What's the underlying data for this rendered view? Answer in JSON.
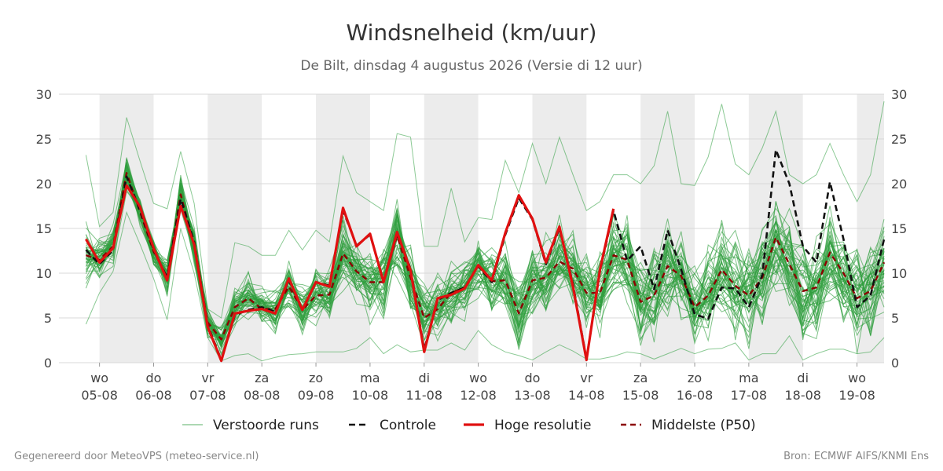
{
  "header": {
    "title": "Windsnelheid (km/uur)",
    "subtitle": "De Bilt, dinsdag  4 augustus 2026 (Versie di 12 uur)"
  },
  "footer": {
    "left": "Gegenereerd door MeteoVPS (meteo-service.nl)",
    "right": "Bron: ECMWF AIFS/KNMI Ens"
  },
  "colors": {
    "ensemble": "#2e9e3e",
    "control": "#111111",
    "highres": "#e01010",
    "median": "#8b0000",
    "shade": "#ececec",
    "grid": "#d9d9d9",
    "tick_text": "#444444"
  },
  "chart_data": {
    "type": "line",
    "title": "Windsnelheid (km/uur)",
    "ylim": [
      0,
      30
    ],
    "yticks": [
      0,
      5,
      10,
      15,
      20,
      25,
      30
    ],
    "xlim": [
      -0.75,
      14.5
    ],
    "grid": "horizontal",
    "legend_position": "bottom",
    "x_ticks": [
      {
        "x": 0,
        "day": "wo",
        "date": "05-08"
      },
      {
        "x": 1,
        "day": "do",
        "date": "06-08"
      },
      {
        "x": 2,
        "day": "vr",
        "date": "07-08"
      },
      {
        "x": 3,
        "day": "za",
        "date": "08-08"
      },
      {
        "x": 4,
        "day": "zo",
        "date": "09-08"
      },
      {
        "x": 5,
        "day": "ma",
        "date": "10-08"
      },
      {
        "x": 6,
        "day": "di",
        "date": "11-08"
      },
      {
        "x": 7,
        "day": "wo",
        "date": "12-08"
      },
      {
        "x": 8,
        "day": "do",
        "date": "13-08"
      },
      {
        "x": 9,
        "day": "vr",
        "date": "14-08"
      },
      {
        "x": 10,
        "day": "za",
        "date": "15-08"
      },
      {
        "x": 11,
        "day": "zo",
        "date": "16-08"
      },
      {
        "x": 12,
        "day": "ma",
        "date": "17-08"
      },
      {
        "x": 13,
        "day": "di",
        "date": "18-08"
      },
      {
        "x": 14,
        "day": "wo",
        "date": "19-08"
      }
    ],
    "shaded_bands": [
      [
        0,
        1
      ],
      [
        2,
        3
      ],
      [
        4,
        5
      ],
      [
        6,
        7
      ],
      [
        8,
        9
      ],
      [
        10,
        11
      ],
      [
        12,
        13
      ],
      [
        14,
        14.5
      ]
    ],
    "legend": [
      {
        "label": "Verstoorde runs",
        "style": "ensemble"
      },
      {
        "label": "Controle",
        "style": "control"
      },
      {
        "label": "Hoge resolutie",
        "style": "highres"
      },
      {
        "label": "Middelste (P50)",
        "style": "median"
      }
    ],
    "series": [
      {
        "name": "Hoge resolutie",
        "points": [
          [
            -0.25,
            13.8
          ],
          [
            0,
            11.2
          ],
          [
            0.25,
            12.8
          ],
          [
            0.5,
            19.8
          ],
          [
            0.75,
            17.4
          ],
          [
            1,
            12.8
          ],
          [
            1.25,
            9.2
          ],
          [
            1.5,
            17.5
          ],
          [
            1.75,
            13.2
          ],
          [
            2,
            4.0
          ],
          [
            2.25,
            0.2
          ],
          [
            2.5,
            5.5
          ],
          [
            2.75,
            5.8
          ],
          [
            3,
            6.0
          ],
          [
            3.25,
            5.5
          ],
          [
            3.5,
            9.4
          ],
          [
            3.75,
            5.9
          ],
          [
            4,
            9.0
          ],
          [
            4.25,
            8.5
          ],
          [
            4.5,
            17.3
          ],
          [
            4.75,
            13.0
          ],
          [
            5,
            14.4
          ],
          [
            5.25,
            9.0
          ],
          [
            5.5,
            14.6
          ],
          [
            5.75,
            10.3
          ],
          [
            6,
            1.2
          ],
          [
            6.25,
            7.2
          ],
          [
            6.5,
            7.6
          ],
          [
            6.75,
            8.3
          ],
          [
            7,
            10.9
          ],
          [
            7.25,
            9.2
          ],
          [
            7.5,
            14.5
          ],
          [
            7.75,
            18.7
          ],
          [
            8,
            16.1
          ],
          [
            8.25,
            11.2
          ],
          [
            8.5,
            15.2
          ],
          [
            8.75,
            8.5
          ],
          [
            9,
            0.3
          ],
          [
            9.25,
            10.4
          ],
          [
            9.5,
            17.2
          ]
        ]
      },
      {
        "name": "Controle",
        "points": [
          [
            -0.25,
            12.6
          ],
          [
            0,
            11.0
          ],
          [
            0.25,
            12.6
          ],
          [
            0.5,
            20.8
          ],
          [
            0.75,
            17.0
          ],
          [
            1,
            12.6
          ],
          [
            1.25,
            9.5
          ],
          [
            1.5,
            18.3
          ],
          [
            1.75,
            13.5
          ],
          [
            2,
            4.2
          ],
          [
            2.25,
            0.3
          ],
          [
            2.5,
            5.3
          ],
          [
            2.75,
            5.9
          ],
          [
            3,
            6.2
          ],
          [
            3.25,
            5.7
          ],
          [
            3.5,
            9.2
          ],
          [
            3.75,
            5.9
          ],
          [
            4,
            9.0
          ],
          [
            4.25,
            8.6
          ],
          [
            4.5,
            17.0
          ],
          [
            4.75,
            13.1
          ],
          [
            5,
            14.3
          ],
          [
            5.25,
            9.1
          ],
          [
            5.5,
            14.4
          ],
          [
            5.75,
            10.5
          ],
          [
            6,
            1.5
          ],
          [
            6.25,
            7.0
          ],
          [
            6.5,
            7.8
          ],
          [
            6.75,
            8.4
          ],
          [
            7,
            10.8
          ],
          [
            7.25,
            9.0
          ],
          [
            7.5,
            14.3
          ],
          [
            7.75,
            18.4
          ],
          [
            8,
            16.0
          ],
          [
            8.25,
            11.0
          ],
          [
            8.5,
            15.0
          ],
          [
            8.75,
            8.8
          ],
          [
            9,
            0.4
          ],
          [
            9.25,
            10.2
          ],
          [
            9.5,
            17.0
          ],
          [
            9.75,
            11.4
          ],
          [
            10,
            13.0
          ],
          [
            10.25,
            8.2
          ],
          [
            10.5,
            14.8
          ],
          [
            10.75,
            10.4
          ],
          [
            11,
            5.4
          ],
          [
            11.25,
            4.9
          ],
          [
            11.5,
            8.4
          ],
          [
            11.75,
            8.3
          ],
          [
            12,
            6.2
          ],
          [
            12.25,
            9.8
          ],
          [
            12.5,
            23.8
          ],
          [
            12.75,
            20.0
          ],
          [
            13,
            13.0
          ],
          [
            13.25,
            11.2
          ],
          [
            13.5,
            20.2
          ],
          [
            13.75,
            13.8
          ],
          [
            14,
            6.2
          ],
          [
            14.25,
            7.5
          ],
          [
            14.5,
            13.8
          ]
        ]
      },
      {
        "name": "Middelste (P50)",
        "points": [
          [
            -0.25,
            12.0
          ],
          [
            0,
            11.5
          ],
          [
            0.25,
            13.0
          ],
          [
            0.5,
            21.2
          ],
          [
            0.75,
            16.8
          ],
          [
            1,
            12.4
          ],
          [
            1.25,
            9.6
          ],
          [
            1.5,
            18.8
          ],
          [
            1.75,
            13.0
          ],
          [
            2,
            4.5
          ],
          [
            2.25,
            2.6
          ],
          [
            2.5,
            6.2
          ],
          [
            2.75,
            7.2
          ],
          [
            3,
            6.0
          ],
          [
            3.25,
            6.0
          ],
          [
            3.5,
            8.5
          ],
          [
            3.75,
            5.9
          ],
          [
            4,
            7.5
          ],
          [
            4.25,
            7.6
          ],
          [
            4.5,
            12.2
          ],
          [
            4.75,
            10.2
          ],
          [
            5,
            9.0
          ],
          [
            5.25,
            9.0
          ],
          [
            5.5,
            14.2
          ],
          [
            5.75,
            9.5
          ],
          [
            6,
            5.0
          ],
          [
            6.25,
            6.0
          ],
          [
            6.5,
            7.8
          ],
          [
            6.75,
            8.4
          ],
          [
            7,
            10.8
          ],
          [
            7.25,
            9.1
          ],
          [
            7.5,
            9.2
          ],
          [
            7.75,
            5.5
          ],
          [
            8,
            9.2
          ],
          [
            8.25,
            9.5
          ],
          [
            8.5,
            11.3
          ],
          [
            8.75,
            10.5
          ],
          [
            9,
            7.8
          ],
          [
            9.25,
            7.8
          ],
          [
            9.5,
            12.0
          ],
          [
            9.75,
            11.5
          ],
          [
            10,
            6.8
          ],
          [
            10.25,
            7.5
          ],
          [
            10.5,
            10.8
          ],
          [
            10.75,
            9.7
          ],
          [
            11,
            6.2
          ],
          [
            11.25,
            7.5
          ],
          [
            11.5,
            10.4
          ],
          [
            11.75,
            8.6
          ],
          [
            12,
            7.5
          ],
          [
            12.25,
            9.5
          ],
          [
            12.5,
            14.0
          ],
          [
            12.75,
            11.0
          ],
          [
            13,
            8.0
          ],
          [
            13.25,
            8.4
          ],
          [
            13.5,
            12.3
          ],
          [
            13.75,
            10.0
          ],
          [
            14,
            7.2
          ],
          [
            14.25,
            8.0
          ],
          [
            14.5,
            11.2
          ]
        ]
      }
    ],
    "ensemble": {
      "name": "Verstoorde runs",
      "members": 50,
      "x_start": -0.25,
      "x_step": 0.25,
      "median": [
        12.0,
        11.5,
        13.0,
        21.2,
        16.8,
        12.4,
        9.6,
        18.8,
        13.0,
        4.5,
        2.6,
        6.2,
        7.2,
        6.0,
        6.0,
        8.5,
        5.9,
        7.5,
        7.6,
        12.2,
        10.2,
        9.0,
        9.0,
        14.2,
        9.5,
        5.0,
        6.0,
        7.8,
        8.4,
        10.8,
        9.1,
        9.2,
        5.5,
        9.2,
        9.5,
        11.3,
        10.5,
        7.8,
        7.8,
        12.0,
        11.5,
        6.8,
        7.5,
        10.8,
        9.7,
        6.2,
        7.5,
        10.4,
        8.6,
        7.5,
        9.5,
        14.0,
        11.0,
        8.0,
        8.4,
        12.3,
        10.0,
        7.2,
        8.0,
        11.2
      ],
      "spread": [
        4.5,
        3.0,
        3.0,
        2.6,
        2.3,
        2.8,
        2.6,
        2.5,
        3.0,
        2.5,
        2.0,
        3.0,
        3.5,
        3.5,
        3.6,
        3.6,
        3.6,
        4.0,
        4.0,
        5.0,
        5.0,
        5.0,
        5.5,
        5.5,
        5.5,
        5.0,
        4.5,
        4.5,
        4.5,
        4.5,
        4.5,
        5.0,
        6.0,
        6.0,
        6.0,
        6.5,
        6.5,
        6.0,
        6.0,
        6.5,
        6.5,
        6.5,
        6.5,
        7.0,
        7.0,
        6.5,
        7.0,
        7.5,
        7.5,
        7.0,
        7.0,
        7.5,
        7.5,
        7.5,
        7.5,
        7.5,
        7.5,
        7.5,
        7.5,
        7.5
      ],
      "max": [
        23.2,
        15.2,
        16.8,
        27.4,
        22.5,
        17.8,
        17.2,
        23.6,
        17.8,
        6.0,
        5.0,
        13.4,
        13.0,
        12.0,
        12.0,
        14.8,
        12.6,
        14.8,
        13.5,
        23.1,
        19.0,
        18.0,
        17.0,
        25.6,
        25.2,
        13.0,
        13.0,
        19.5,
        13.5,
        16.2,
        16.0,
        22.6,
        19.0,
        24.5,
        20.0,
        25.2,
        21.0,
        17.0,
        18.0,
        21.0,
        21.0,
        20.0,
        22.0,
        28.1,
        20.0,
        19.8,
        23.0,
        28.9,
        22.2,
        21.0,
        24.0,
        28.1,
        21.0,
        20.0,
        21.0,
        24.5,
        21.0,
        18.0,
        21.0,
        29.2
      ],
      "min": [
        4.3,
        7.8,
        10.2,
        16.8,
        13.2,
        9.4,
        4.8,
        15.0,
        10.0,
        2.8,
        0.2,
        0.8,
        1.0,
        0.2,
        0.6,
        0.9,
        1.0,
        1.2,
        1.2,
        1.2,
        1.6,
        2.8,
        1.0,
        2.0,
        1.2,
        1.4,
        1.4,
        2.2,
        1.4,
        3.6,
        2.0,
        1.2,
        0.8,
        0.3,
        1.2,
        2.0,
        1.3,
        0.4,
        0.4,
        0.7,
        1.2,
        1.0,
        0.4,
        1.0,
        1.6,
        1.0,
        1.5,
        1.6,
        2.2,
        0.3,
        1.0,
        1.0,
        3.0,
        0.3,
        1.0,
        1.5,
        1.5,
        1.0,
        1.2,
        2.8
      ]
    }
  }
}
